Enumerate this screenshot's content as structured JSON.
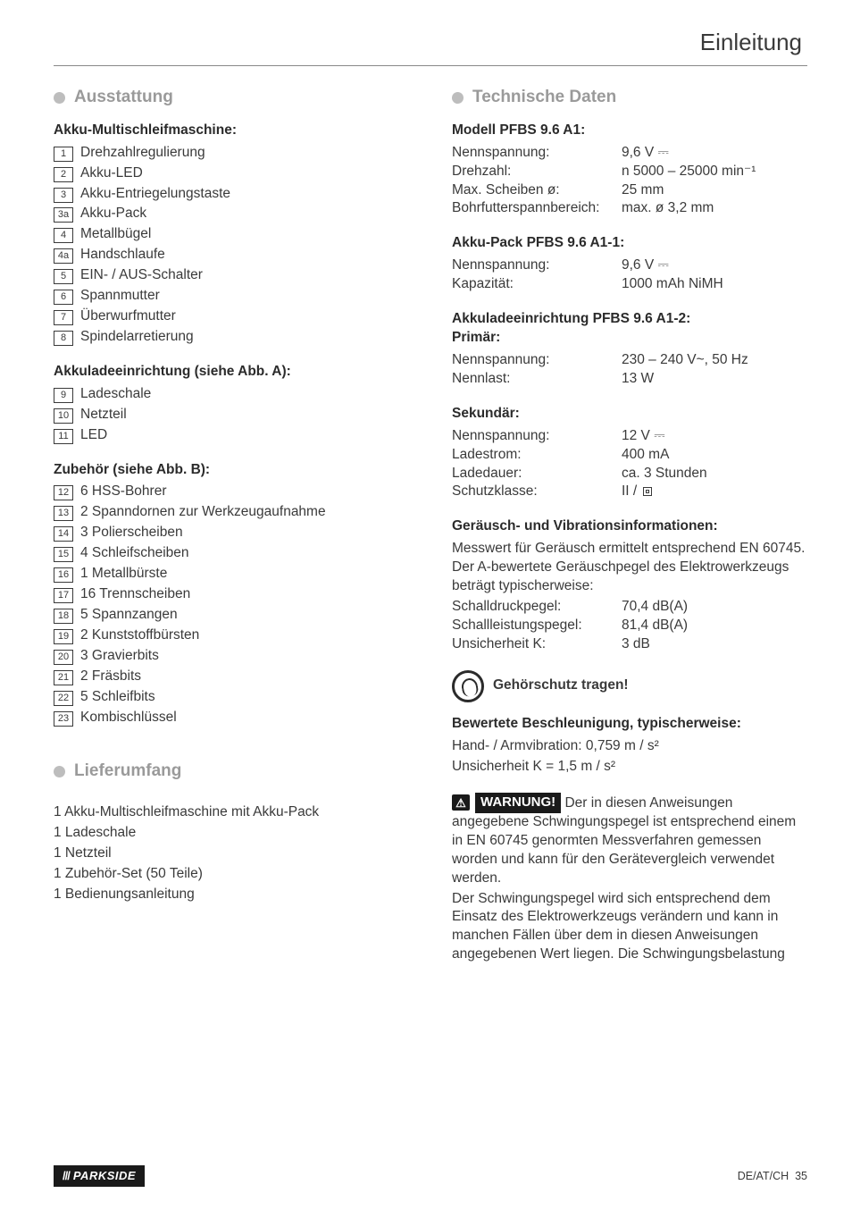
{
  "page": {
    "title": "Einleitung",
    "region": "DE/AT/CH",
    "num": "35"
  },
  "brand": "PARKSIDE",
  "left": {
    "sec1_title": "Ausstattung",
    "group1_title": "Akku-Multischleifmaschine:",
    "items1": [
      {
        "n": "1",
        "t": "Drehzahlregulierung"
      },
      {
        "n": "2",
        "t": "Akku-LED"
      },
      {
        "n": "3",
        "t": "Akku-Entriegelungstaste"
      },
      {
        "n": "3a",
        "t": "Akku-Pack"
      },
      {
        "n": "4",
        "t": "Metallbügel"
      },
      {
        "n": "4a",
        "t": "Handschlaufe"
      },
      {
        "n": "5",
        "t": "EIN- / AUS-Schalter"
      },
      {
        "n": "6",
        "t": "Spannmutter"
      },
      {
        "n": "7",
        "t": "Überwurfmutter"
      },
      {
        "n": "8",
        "t": "Spindelarretierung"
      }
    ],
    "group2_title": "Akkuladeeinrichtung (siehe Abb. A):",
    "items2": [
      {
        "n": "9",
        "t": "Ladeschale"
      },
      {
        "n": "10",
        "t": "Netzteil"
      },
      {
        "n": "11",
        "t": "LED"
      }
    ],
    "group3_title": "Zubehör (siehe Abb. B):",
    "items3": [
      {
        "n": "12",
        "t": "6 HSS-Bohrer"
      },
      {
        "n": "13",
        "t": "2 Spanndornen zur Werkzeugaufnahme"
      },
      {
        "n": "14",
        "t": "3 Polierscheiben"
      },
      {
        "n": "15",
        "t": "4 Schleifscheiben"
      },
      {
        "n": "16",
        "t": "1 Metallbürste"
      },
      {
        "n": "17",
        "t": "16 Trennscheiben"
      },
      {
        "n": "18",
        "t": "5 Spannzangen"
      },
      {
        "n": "19",
        "t": "2 Kunststoffbürsten"
      },
      {
        "n": "20",
        "t": "3 Gravierbits"
      },
      {
        "n": "21",
        "t": "2 Fräsbits"
      },
      {
        "n": "22",
        "t": "5 Schleifbits"
      },
      {
        "n": "23",
        "t": "Kombischlüssel"
      }
    ],
    "sec2_title": "Lieferumfang",
    "delivery": [
      "1 Akku-Multischleifmaschine mit Akku-Pack",
      "1 Ladeschale",
      "1 Netzteil",
      "1 Zubehör-Set (50 Teile)",
      "1 Bedienungsanleitung"
    ]
  },
  "right": {
    "sec_title": "Technische Daten",
    "model_title": "Modell PFBS 9.6 A1:",
    "model": [
      {
        "k": "Nennspannung:",
        "v": "9,6 V ⎓"
      },
      {
        "k": "Drehzahl:",
        "v": "n 5000 – 25000 min⁻¹"
      },
      {
        "k": "Max. Scheiben ø:",
        "v": "25 mm"
      },
      {
        "k": "Bohrfutterspannbereich:",
        "v": "max. ø 3,2 mm"
      }
    ],
    "pack_title": "Akku-Pack PFBS 9.6 A1-1:",
    "pack": [
      {
        "k": "Nennspannung:",
        "v": "9,6 V ⎓"
      },
      {
        "k": "Kapazität:",
        "v": "1000 mAh NiMH"
      }
    ],
    "charger_title": "Akkuladeeinrichtung PFBS 9.6 A1-2:",
    "primary_title": "Primär:",
    "primary": [
      {
        "k": "Nennspannung:",
        "v": "230 – 240 V~, 50 Hz"
      },
      {
        "k": "Nennlast:",
        "v": "13 W"
      }
    ],
    "secondary_title": "Sekundär:",
    "secondary": [
      {
        "k": "Nennspannung:",
        "v": "12 V ⎓"
      },
      {
        "k": "Ladestrom:",
        "v": "400 mA"
      },
      {
        "k": "Ladedauer:",
        "v": "ca. 3 Stunden"
      },
      {
        "k": "Schutzklasse:",
        "v": "II / □"
      }
    ],
    "noise_title": "Geräusch- und Vibrationsinformationen:",
    "noise_intro": "Messwert für Geräusch ermittelt entsprechend EN 60745. Der A-bewertete Geräuschpegel des Elektrowerkzeugs beträgt typischerweise:",
    "noise": [
      {
        "k": "Schalldruckpegel:",
        "v": "70,4 dB(A)"
      },
      {
        "k": "Schallleistungspegel:",
        "v": "81,4 dB(A)"
      },
      {
        "k": "Unsicherheit K:",
        "v": "3 dB"
      }
    ],
    "ear_text": "Gehörschutz tragen!",
    "accel_title": "Bewertete Beschleunigung, typischerweise:",
    "accel1": "Hand- / Armvibration: 0,759 m / s²",
    "accel2": "Unsicherheit K = 1,5 m / s²",
    "warn_label": "WARNUNG!",
    "warn_text1": " Der in diesen Anweisungen angegebene Schwingungspegel ist entsprechend einem in EN 60745 genormten Messverfahren gemessen worden und kann für den Gerätevergleich verwendet werden.",
    "warn_text2": "Der Schwingungspegel wird sich entsprechend dem Einsatz des Elektrowerkzeugs verändern und kann in manchen Fällen über dem in diesen Anweisungen angegebenen Wert liegen. Die Schwingungsbelastung"
  }
}
